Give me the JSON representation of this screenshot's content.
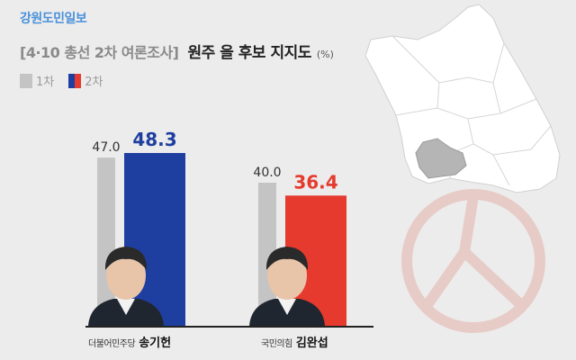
{
  "publisher": "강원도민일보",
  "title": {
    "bracket": "[4·10 총선 2차 여론조사]",
    "main": "원주 을 후보 지지도",
    "unit": "(%)"
  },
  "legend": [
    {
      "label": "1차",
      "color": "#c4c4c4"
    },
    {
      "label": "2차",
      "colors": [
        "#1f3fa0",
        "#e63a2e"
      ]
    }
  ],
  "candidates": [
    {
      "party": "더불어민주당",
      "name": "송기헌",
      "color": "#1f3fa0"
    },
    {
      "party": "국민의힘",
      "name": "김완섭",
      "color": "#e63a2e"
    }
  ],
  "chart_data": {
    "type": "bar",
    "categories": [
      "송기헌",
      "김완섭"
    ],
    "series": [
      {
        "name": "1차",
        "values": [
          47.0,
          40.0
        ],
        "color": "#c4c4c4"
      },
      {
        "name": "2차",
        "values": [
          48.3,
          36.4
        ],
        "colors": [
          "#1f3fa0",
          "#e63a2e"
        ]
      }
    ],
    "title": "원주 을 후보 지지도",
    "xlabel": "",
    "ylabel": "",
    "ylim": [
      0,
      48.3
    ],
    "grid": false,
    "legend_position": "top-left"
  }
}
